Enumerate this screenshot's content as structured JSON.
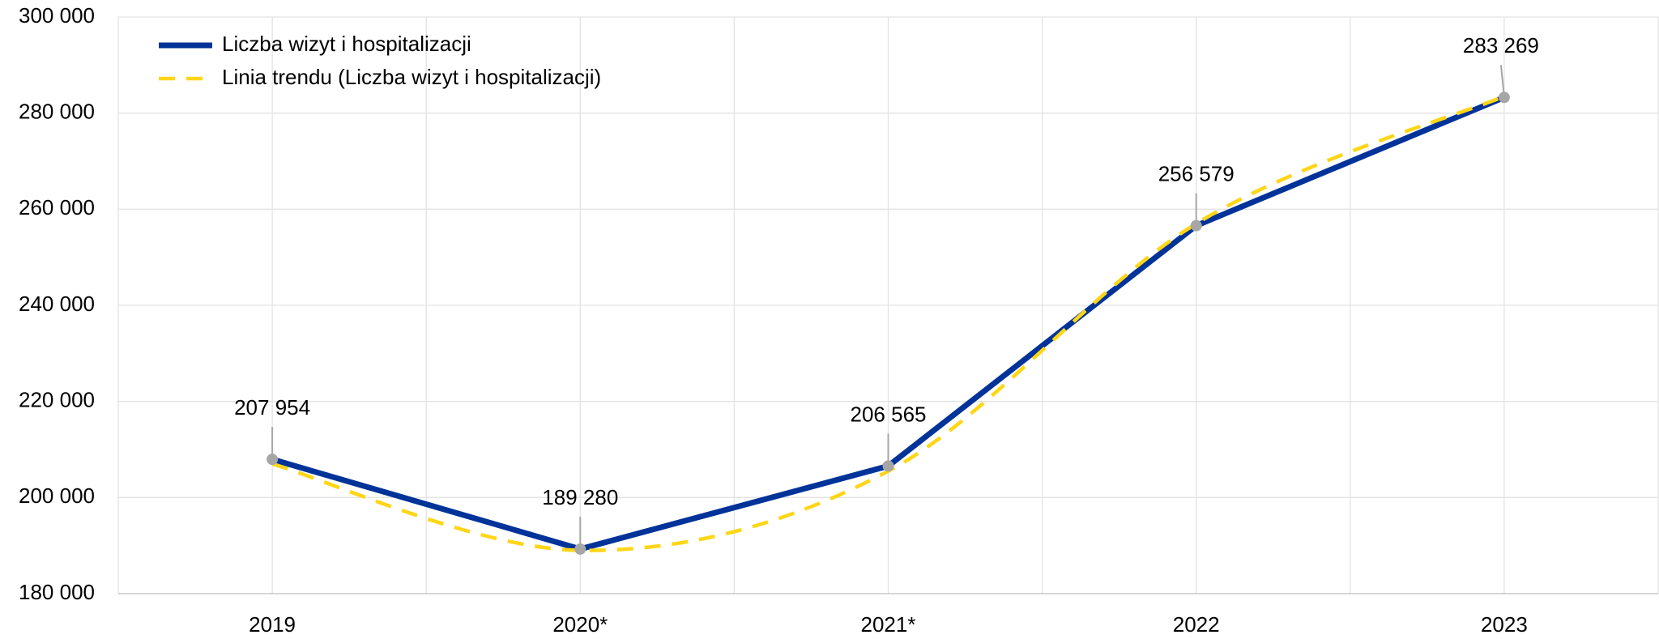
{
  "chart_data": {
    "type": "line",
    "categories": [
      "2019",
      "2020*",
      "2021*",
      "2022",
      "2023"
    ],
    "series": [
      {
        "name": "Liczba wizyt i hospitalizacji",
        "color": "#003399",
        "values": [
          207954,
          189280,
          206565,
          256579,
          283269
        ],
        "value_labels": [
          "207 954",
          "189 280",
          "206 565",
          "256 579",
          "283 269"
        ]
      },
      {
        "name": "Linia trendu (Liczba wizyt i hospitalizacji)",
        "color": "#ffd617",
        "dashed": true,
        "values": [
          207000,
          189000,
          205500,
          257000,
          283500
        ]
      }
    ],
    "ylim": [
      180000,
      300000
    ],
    "yticks": [
      {
        "value": 180000,
        "label": "180 000"
      },
      {
        "value": 200000,
        "label": "200 000"
      },
      {
        "value": 220000,
        "label": "220 000"
      },
      {
        "value": 240000,
        "label": "240 000"
      },
      {
        "value": 260000,
        "label": "260 000"
      },
      {
        "value": 280000,
        "label": "280 000"
      },
      {
        "value": 300000,
        "label": "300 000"
      }
    ],
    "grid": true,
    "marker_color": "#a6a6a6",
    "legend": "top-left"
  }
}
